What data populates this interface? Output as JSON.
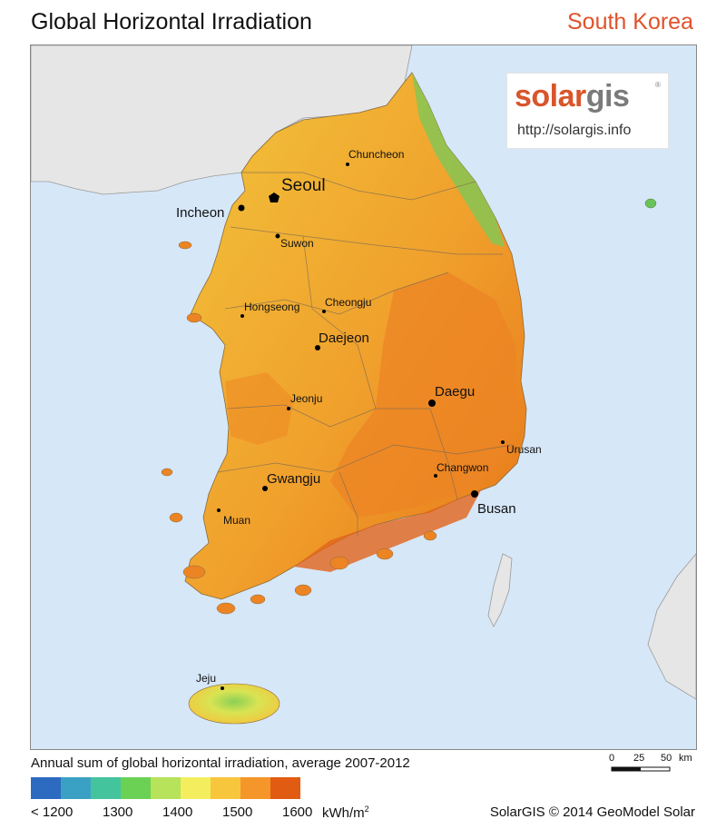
{
  "header": {
    "title": "Global Horizontal Irradiation",
    "country": "South Korea"
  },
  "logo": {
    "brand_part1": "solar",
    "brand_part2": "gis",
    "reg_mark": "®",
    "url": "http://solargis.info",
    "colors": {
      "solar": "#d9552b",
      "gis": "#7a7a7a"
    }
  },
  "map": {
    "sea_color": "#d6e7f8",
    "neighbor_land_color": "#e6e6e6",
    "cities": [
      {
        "name": "Seoul",
        "size": "large",
        "marker": "capital"
      },
      {
        "name": "Incheon",
        "size": "medium",
        "marker": "dot"
      },
      {
        "name": "Chuncheon",
        "size": "small",
        "marker": "dot"
      },
      {
        "name": "Suwon",
        "size": "small",
        "marker": "dot"
      },
      {
        "name": "Hongseong",
        "size": "small",
        "marker": "dot"
      },
      {
        "name": "Cheongju",
        "size": "small",
        "marker": "dot"
      },
      {
        "name": "Daejeon",
        "size": "medium",
        "marker": "dot"
      },
      {
        "name": "Jeonju",
        "size": "small",
        "marker": "dot"
      },
      {
        "name": "Daegu",
        "size": "medium",
        "marker": "dot"
      },
      {
        "name": "Urusan",
        "size": "small",
        "marker": "dot"
      },
      {
        "name": "Changwon",
        "size": "small",
        "marker": "dot"
      },
      {
        "name": "Gwangju",
        "size": "medium",
        "marker": "dot"
      },
      {
        "name": "Busan",
        "size": "medium",
        "marker": "dot"
      },
      {
        "name": "Muan",
        "size": "small",
        "marker": "dot"
      },
      {
        "name": "Jeju",
        "size": "small",
        "marker": "dot"
      }
    ]
  },
  "legend": {
    "caption": "Annual sum of global horizontal irradiation, average 2007-2012",
    "colors": [
      "#2d6bc0",
      "#3aa1c4",
      "#44c49d",
      "#6ad155",
      "#b6e35a",
      "#f4ee5e",
      "#f7c63c",
      "#f4962a",
      "#e25b12"
    ],
    "ticks": [
      "< 1200",
      "1300",
      "1400",
      "1500",
      "1600"
    ],
    "unit": "kWh/m",
    "unit_exp": "2"
  },
  "scale_bar": {
    "labels": [
      "0",
      "25",
      "50",
      "km"
    ]
  },
  "credit": "SolarGIS © 2014 GeoModel Solar"
}
